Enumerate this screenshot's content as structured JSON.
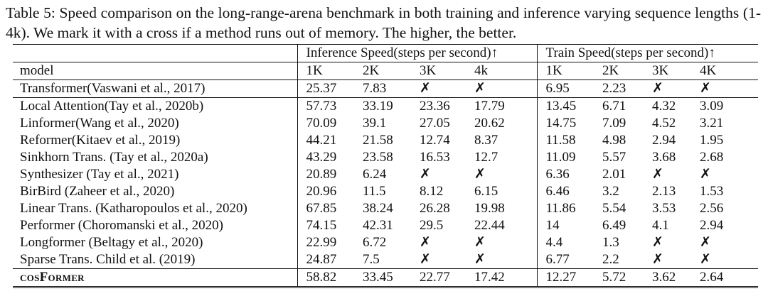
{
  "caption": "Table 5: Speed comparison on the long-range-arena benchmark in both training and inference varying sequence lengths (1-4k). We mark it with a cross if a method runs out of memory. The higher, the better.",
  "table": {
    "header_groups": [
      "Inference Speed(steps per second)↑",
      "Train Speed(steps per second)↑"
    ],
    "columns": [
      "model",
      "1K",
      "2K",
      "3K",
      "4k",
      "1K",
      "2K",
      "3K",
      "4K"
    ],
    "rows": [
      [
        "Transformer(Vaswani et al., 2017)",
        "25.37",
        "7.83",
        "✗",
        "✗",
        "6.95",
        "2.23",
        "✗",
        "✗"
      ],
      [
        "Local Attention(Tay et al., 2020b)",
        "57.73",
        "33.19",
        "23.36",
        "17.79",
        "13.45",
        "6.71",
        "4.32",
        "3.09"
      ],
      [
        "Linformer(Wang et al., 2020)",
        "70.09",
        "39.1",
        "27.05",
        "20.62",
        "14.75",
        "7.09",
        "4.52",
        "3.21"
      ],
      [
        "Reformer(Kitaev et al., 2019)",
        "44.21",
        "21.58",
        "12.74",
        "8.37",
        "11.58",
        "4.98",
        "2.94",
        "1.95"
      ],
      [
        "Sinkhorn Trans. (Tay et al., 2020a)",
        "43.29",
        "23.58",
        "16.53",
        "12.7",
        "11.09",
        "5.57",
        "3.68",
        "2.68"
      ],
      [
        "Synthesizer (Tay et al., 2021)",
        "20.89",
        "6.24",
        "✗",
        "✗",
        "6.36",
        "2.01",
        "✗",
        "✗"
      ],
      [
        "BirBird (Zaheer et al., 2020)",
        "20.96",
        "11.5",
        "8.12",
        "6.15",
        "6.46",
        "3.2",
        "2.13",
        "1.53"
      ],
      [
        "Linear Trans. (Katharopoulos et al., 2020)",
        "67.85",
        "38.24",
        "26.28",
        "19.98",
        "11.86",
        "5.54",
        "3.53",
        "2.56"
      ],
      [
        "Performer (Choromanski et al., 2020)",
        "74.15",
        "42.31",
        "29.5",
        "22.44",
        "14",
        "6.49",
        "4.1",
        "2.94"
      ],
      [
        "Longformer (Beltagy et al., 2020)",
        "22.99",
        "6.72",
        "✗",
        "✗",
        "4.4",
        "1.3",
        "✗",
        "✗"
      ],
      [
        "Sparse Trans. Child et al. (2019)",
        "24.87",
        "7.5",
        "✗",
        "✗",
        "6.77",
        "2.2",
        "✗",
        "✗"
      ],
      [
        "cosFormer",
        "58.82",
        "33.45",
        "22.77",
        "17.42",
        "12.27",
        "5.72",
        "3.62",
        "2.64"
      ]
    ]
  }
}
